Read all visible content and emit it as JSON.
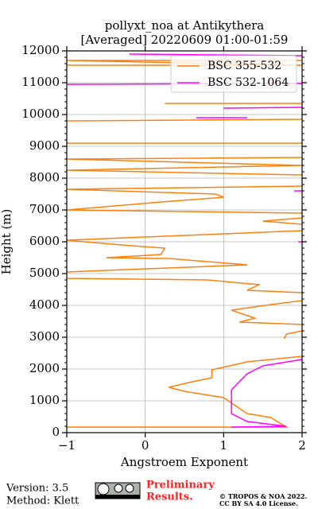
{
  "chart_data": {
    "type": "line",
    "title": [
      "pollyxt_noa at Antikythera",
      "[Averaged] 20220609 01:00-01:59"
    ],
    "x_label": "Angstroem Exponent",
    "y_label": "Height (m)",
    "xlim": [
      -1,
      2
    ],
    "xticks": [
      {
        "value": -1,
        "label": "−1"
      },
      0,
      1,
      2
    ],
    "ylim": [
      0,
      12000
    ],
    "yticks": [
      0,
      1000,
      2000,
      3000,
      4000,
      5000,
      6000,
      7000,
      8000,
      9000,
      10000,
      11000,
      12000
    ],
    "grid": true,
    "legend": "upper right",
    "series": [
      {
        "name": "BSC 355-532",
        "color": "#ff7f0e",
        "x": [
          -1,
          1.8,
          1.6,
          1.3,
          1.0,
          0.5,
          0.3,
          0.6,
          0.85,
          0.85,
          1.3,
          2.0,
          null,
          1.77,
          1.8,
          2.0,
          null,
          2.0,
          1.2,
          1.4,
          1.1,
          1.6,
          2.0,
          null,
          2.0,
          1.3,
          1.45,
          0.8,
          -1,
          null,
          -1,
          1.3,
          0.3,
          -0.5,
          0.2,
          0.25,
          -0.3,
          -1,
          0.5,
          2.0,
          null,
          2.0,
          1.5,
          2.0,
          null,
          2.0,
          -1,
          0.2,
          1.0,
          0.9,
          -1,
          2.0,
          null,
          2.0,
          -1,
          2.0,
          -1,
          2.0,
          null,
          -1,
          2.0,
          null,
          -1,
          2.0,
          null,
          0.25,
          2.0,
          null,
          -1,
          2.0,
          -1,
          2.0
        ],
        "y": [
          175,
          175,
          475,
          600,
          1100,
          1300,
          1425,
          1600,
          1725,
          1975,
          2225,
          2400,
          null,
          2950,
          3100,
          3200,
          null,
          3400,
          3475,
          3600,
          3850,
          4025,
          4150,
          null,
          4400,
          4475,
          4650,
          4800,
          4850,
          null,
          5050,
          5275,
          5475,
          5500,
          5600,
          5800,
          5900,
          6050,
          6200,
          6350,
          null,
          6550,
          6650,
          6750,
          null,
          6900,
          7000,
          7250,
          7400,
          7500,
          7650,
          7750,
          null,
          8100,
          8250,
          8400,
          8600,
          8650,
          null,
          9100,
          9100,
          null,
          9800,
          9850,
          null,
          10350,
          10350,
          null,
          11550,
          11550,
          11700,
          11700
        ]
      },
      {
        "name": "BSC 532-1064",
        "color": "#ff00ff",
        "x": [
          1.1,
          1.8,
          1.3,
          1.1,
          1.1,
          1.1,
          1.3,
          1.5,
          2.0,
          null,
          0.65,
          1.3,
          null,
          1.0,
          2.0,
          null,
          -1,
          2.0,
          null,
          -0.2,
          2.0,
          null,
          1.9,
          2.0,
          null,
          1.95,
          2.0
        ],
        "y": [
          175,
          200,
          350,
          600,
          975,
          1350,
          1850,
          2100,
          2300,
          null,
          9900,
          9900,
          null,
          10200,
          10225,
          null,
          10950,
          10975,
          null,
          11900,
          11850,
          null,
          7600,
          7600,
          null,
          6000,
          6000
        ]
      }
    ]
  },
  "footer": {
    "version": "Version: 3.5",
    "method": "Method: Klett",
    "preliminary": [
      "Preliminary",
      "Results."
    ],
    "copyright": [
      "© TROPOS & NOA 2022.",
      "CC BY SA 4.0 License."
    ]
  }
}
